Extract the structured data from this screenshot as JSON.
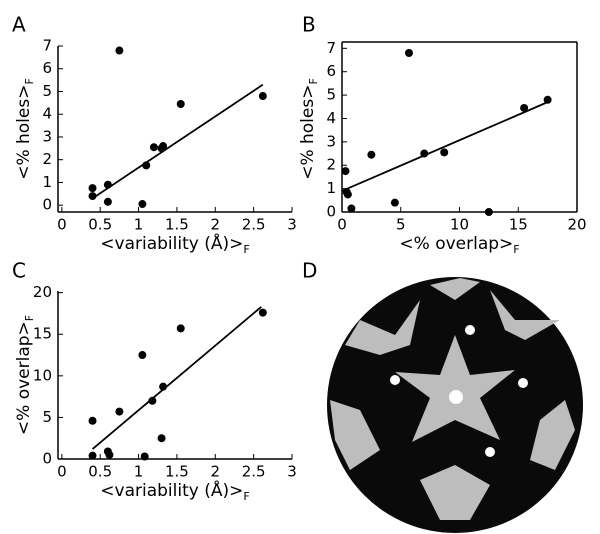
{
  "chart_data": [
    {
      "type": "scatter",
      "label": "A",
      "xlabel": "<variability (Å)>",
      "xlabel_sub": "F",
      "ylabel": "<% holes>",
      "ylabel_sub": "F",
      "x": [
        0.4,
        0.4,
        0.6,
        0.6,
        0.75,
        1.05,
        1.1,
        1.2,
        1.3,
        1.32,
        1.55,
        2.62
      ],
      "values": [
        0.75,
        0.4,
        0.9,
        0.15,
        6.8,
        0.05,
        1.75,
        2.55,
        2.5,
        2.6,
        4.45,
        4.8
      ],
      "fit_x": [
        0.4,
        2.62
      ],
      "fit_values": [
        0.3,
        5.3
      ],
      "xlim": [
        -0.05,
        3
      ],
      "ylim": [
        -0.3,
        7
      ],
      "xticks": [
        0,
        0.5,
        1,
        1.5,
        2,
        2.5,
        3
      ],
      "yticks": [
        0,
        1,
        2,
        3,
        4,
        5,
        6,
        7
      ],
      "box": false,
      "color": "#000000"
    },
    {
      "type": "scatter",
      "label": "B",
      "xlabel": "<% overlap>",
      "xlabel_sub": "F",
      "ylabel": "<% holes>",
      "ylabel_sub": "F",
      "x": [
        0.3,
        0.4,
        0.5,
        0.8,
        2.5,
        4.5,
        5.7,
        7,
        8.7,
        12.5,
        15.5,
        17.5
      ],
      "values": [
        1.75,
        0.85,
        0.75,
        0.15,
        2.45,
        0.4,
        6.8,
        2.5,
        2.55,
        0,
        4.45,
        4.8
      ],
      "fit_x": [
        0,
        17.5
      ],
      "fit_values": [
        0.9,
        4.7
      ],
      "xlim": [
        0,
        20
      ],
      "ylim": [
        0,
        7.1
      ],
      "xticks": [
        0,
        5,
        10,
        15,
        20
      ],
      "yticks": [
        0,
        1,
        2,
        3,
        4,
        5,
        6,
        7
      ],
      "box": true,
      "color": "#000000"
    },
    {
      "type": "scatter",
      "label": "C",
      "xlabel": "<variability (Å)>",
      "xlabel_sub": "F",
      "ylabel": "<% overlap>",
      "ylabel_sub": "F",
      "x": [
        0.4,
        0.4,
        0.6,
        0.62,
        0.75,
        1.05,
        1.08,
        1.18,
        1.3,
        1.32,
        1.55,
        2.62
      ],
      "values": [
        4.6,
        0.4,
        0.9,
        0.5,
        5.7,
        12.5,
        0.3,
        7.0,
        2.5,
        8.7,
        15.7,
        17.6
      ],
      "fit_x": [
        0.4,
        2.6
      ],
      "fit_values": [
        1.2,
        18.3
      ],
      "xlim": [
        -0.05,
        3
      ],
      "ylim": [
        0,
        20.2
      ],
      "xticks": [
        0,
        0.5,
        1,
        1.5,
        2,
        2.5,
        3
      ],
      "yticks": [
        0,
        5,
        10,
        15,
        20
      ],
      "box": false,
      "color": "#000000"
    },
    {
      "type": "image",
      "label": "D"
    }
  ]
}
